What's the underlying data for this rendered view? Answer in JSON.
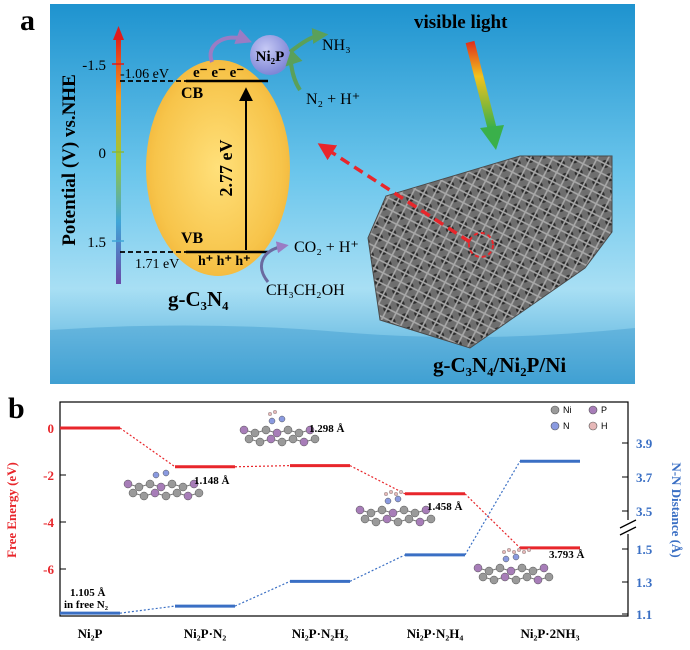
{
  "panel_a": {
    "letter": "a",
    "axis_title": "Potential (V) vs.NHE",
    "ticks": [
      "-1.5",
      "0",
      "1.5"
    ],
    "cb_energy": "-1.06 eV",
    "vb_energy": "1.71 eV",
    "cb_label": "CB",
    "vb_label": "VB",
    "bandgap": "2.77 eV",
    "electrons": "e⁻ e⁻ e⁻",
    "holes": "h⁺ h⁺ h⁺",
    "cocatalyst": "Ni₂P",
    "nh3": "NH₃",
    "n2_h": "N₂ + H⁺",
    "co2_h": "CO₂ + H⁺",
    "ethanol": "CH₃CH₂OH",
    "material": "g-C₃N₄",
    "visible_light": "visible light",
    "composite": "g-C₃N₄/Ni₂P/Ni"
  },
  "panel_b": {
    "letter": "b",
    "legend": [
      "Ni",
      "P",
      "N",
      "H"
    ],
    "colors": {
      "free_energy": "#e8262b",
      "distance": "#3a6fc4",
      "Ni": "#9a9a9a",
      "P": "#a77db8",
      "N": "#8a9ae0",
      "H": "#e6b8b8"
    },
    "bond_labels": [
      "1.105 Å",
      "in free N₂",
      "1.148 Å",
      "1.298 Å",
      "1.458 Å",
      "3.793 Å"
    ]
  },
  "chart_data": {
    "type": "line",
    "categories": [
      "Ni₂P",
      "Ni₂P·N₂",
      "Ni₂P·N₂H₂",
      "Ni₂P·N₂H₄",
      "Ni₂P·2NH₃"
    ],
    "series": [
      {
        "values": [
          0,
          -1.65,
          -1.6,
          -2.8,
          -5.1
        ]
      },
      {
        "values": [
          1.105,
          1.148,
          1.298,
          1.458,
          3.793
        ]
      }
    ],
    "ylabel": "Free Energy (eV)",
    "y2label": "N-N Distance (Å)",
    "ylim": [
      -7.5,
      1.0
    ],
    "yticks": [
      "0",
      "-2",
      "-4",
      "-6"
    ],
    "y2ticks_lower": [
      "1.1",
      "1.3",
      "1.5"
    ],
    "y2ticks_upper": [
      "3.5",
      "3.7",
      "3.9"
    ]
  }
}
